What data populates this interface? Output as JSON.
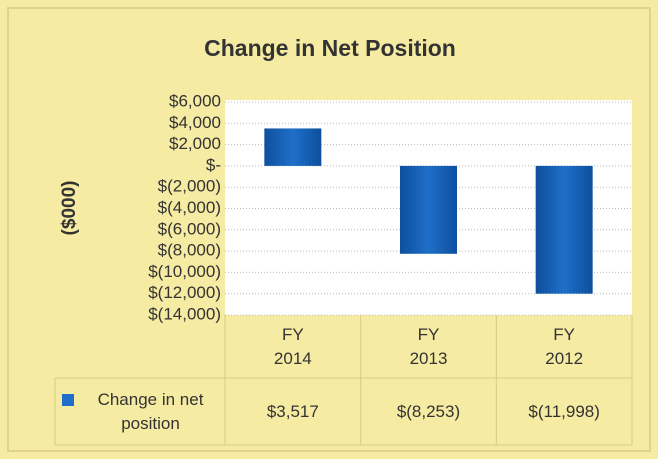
{
  "chart_data": {
    "type": "bar",
    "title": "Change in Net Position",
    "y_label": "($000)",
    "categories": [
      "FY 2014",
      "FY 2013",
      "FY 2012"
    ],
    "series": [
      {
        "name": "Change in net position",
        "color": "#1f6fc8",
        "values": [
          3517,
          -8253,
          -11998
        ],
        "value_labels": [
          "$3,517",
          "$(8,253)",
          "$(11,998)"
        ]
      }
    ],
    "ylim": [
      -14000,
      6000
    ],
    "yticks": [
      {
        "value": 6000,
        "label": "$6,000"
      },
      {
        "value": 4000,
        "label": "$4,000"
      },
      {
        "value": 2000,
        "label": "$2,000"
      },
      {
        "value": 0,
        "label": "$-"
      },
      {
        "value": -2000,
        "label": "$(2,000)"
      },
      {
        "value": -4000,
        "label": "$(4,000)"
      },
      {
        "value": -6000,
        "label": "$(6,000)"
      },
      {
        "value": -8000,
        "label": "$(8,000)"
      },
      {
        "value": -10000,
        "label": "$(10,000)"
      },
      {
        "value": -12000,
        "label": "$(12,000)"
      },
      {
        "value": -14000,
        "label": "$(14,000)"
      }
    ],
    "grid": true,
    "data_table": true
  }
}
